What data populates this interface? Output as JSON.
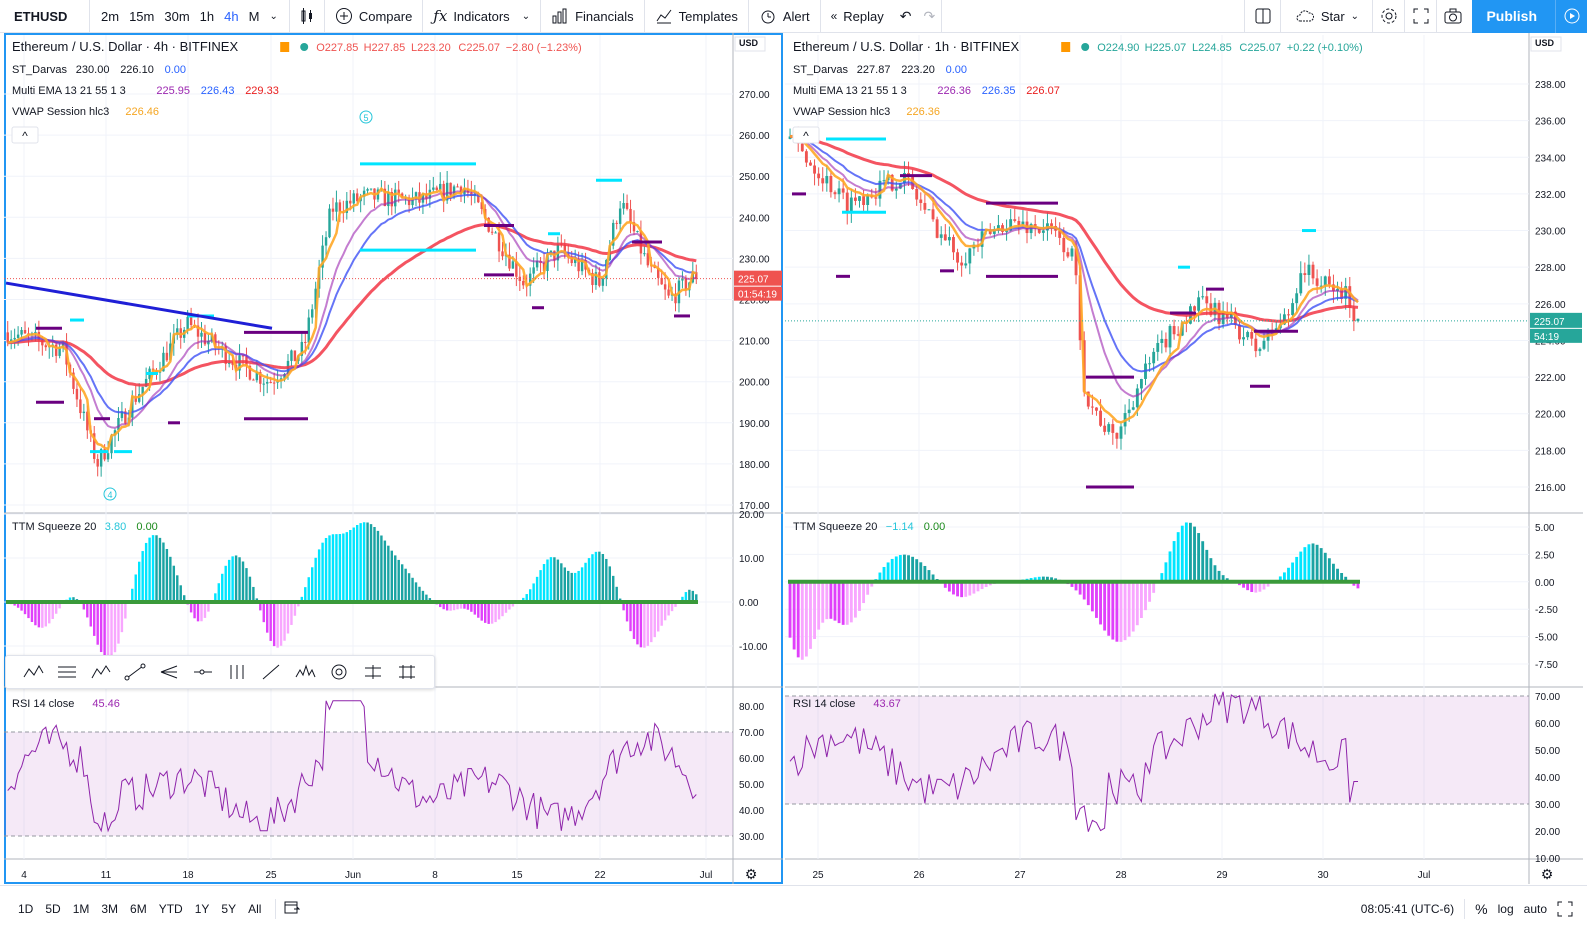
{
  "toolbar": {
    "symbol": "ETHUSD",
    "intervals": [
      {
        "label": "2m",
        "active": false
      },
      {
        "label": "15m",
        "active": false
      },
      {
        "label": "30m",
        "active": false
      },
      {
        "label": "1h",
        "active": false
      },
      {
        "label": "4h",
        "active": true
      },
      {
        "label": "M",
        "active": false
      }
    ],
    "compare": "Compare",
    "indicators": "Indicators",
    "financials": "Financials",
    "templates": "Templates",
    "alert": "Alert",
    "replay": "Replay",
    "layout_name": "Star",
    "publish": "Publish"
  },
  "left_chart": {
    "title": "Ethereum / U.S. Dollar · 4h · BITFINEX",
    "ohlc": {
      "o": "O227.85",
      "h": "H227.85",
      "l": "L223.20",
      "c": "C225.07",
      "chg": "−2.80 (−1.23%)"
    },
    "indicators": [
      {
        "name": "ST_Darvas",
        "values": [
          {
            "v": "230.00",
            "color": "#131722"
          },
          {
            "v": "226.10",
            "color": "#131722"
          },
          {
            "v": "0.00",
            "color": "#2962ff"
          }
        ]
      },
      {
        "name": "Multi EMA 13 21 55 1 3",
        "values": [
          {
            "v": "225.95",
            "color": "#9c27b0"
          },
          {
            "v": "226.43",
            "color": "#2962ff"
          },
          {
            "v": "229.33",
            "color": "#e91e1e"
          }
        ]
      },
      {
        "name": "VWAP Session hlc3",
        "values": [
          {
            "v": "226.46",
            "color": "#f5a623"
          }
        ]
      }
    ],
    "price_axis": {
      "currency": "USD",
      "ticks": [
        "270.00",
        "260.00",
        "250.00",
        "240.00",
        "230.00",
        "220.00",
        "210.00",
        "200.00",
        "190.00",
        "180.00",
        "170.00"
      ],
      "last": "225.07",
      "countdown": "01:54:19"
    },
    "time_axis": [
      "4",
      "11",
      "18",
      "25",
      "Jun",
      "8",
      "15",
      "22",
      "Jul"
    ],
    "marker_top": "5",
    "marker_bottom": "4",
    "ttm": {
      "label": "TTM Squeeze 20",
      "v1": "3.80",
      "v2": "0.00",
      "ticks": [
        "20.00",
        "10.00",
        "0.00",
        "-10.00"
      ]
    },
    "rsi": {
      "label": "RSI 14 close",
      "value": "45.46",
      "ticks": [
        "80.00",
        "70.00",
        "60.00",
        "50.00",
        "40.00",
        "30.00"
      ]
    }
  },
  "right_chart": {
    "title": "Ethereum / U.S. Dollar · 1h · BITFINEX",
    "ohlc": {
      "o": "O224.90",
      "h": "H225.07",
      "l": "L224.85",
      "c": "C225.07",
      "chg": "+0.22 (+0.10%)"
    },
    "indicators": [
      {
        "name": "ST_Darvas",
        "values": [
          {
            "v": "227.87",
            "color": "#131722"
          },
          {
            "v": "223.20",
            "color": "#131722"
          },
          {
            "v": "0.00",
            "color": "#2962ff"
          }
        ]
      },
      {
        "name": "Multi EMA 13 21 55 1 3",
        "values": [
          {
            "v": "226.36",
            "color": "#9c27b0"
          },
          {
            "v": "226.35",
            "color": "#2962ff"
          },
          {
            "v": "226.07",
            "color": "#e91e1e"
          }
        ]
      },
      {
        "name": "VWAP Session hlc3",
        "values": [
          {
            "v": "226.36",
            "color": "#f5a623"
          }
        ]
      }
    ],
    "price_axis": {
      "currency": "USD",
      "ticks": [
        "238.00",
        "236.00",
        "234.00",
        "232.00",
        "230.00",
        "228.00",
        "226.00",
        "224.00",
        "222.00",
        "220.00",
        "218.00",
        "216.00"
      ],
      "last": "225.07",
      "countdown": "54:19"
    },
    "time_axis": [
      "25",
      "26",
      "27",
      "28",
      "29",
      "30",
      "Jul"
    ],
    "ttm": {
      "label": "TTM Squeeze 20",
      "v1": "−1.14",
      "v2": "0.00",
      "ticks": [
        "5.00",
        "2.50",
        "0.00",
        "-2.50",
        "-5.00",
        "-7.50"
      ]
    },
    "rsi": {
      "label": "RSI 14 close",
      "value": "43.67",
      "ticks": [
        "70.00",
        "60.00",
        "50.00",
        "40.00",
        "30.00",
        "20.00",
        "10.00"
      ]
    }
  },
  "bottom": {
    "ranges": [
      "1D",
      "5D",
      "1M",
      "3M",
      "6M",
      "YTD",
      "1Y",
      "5Y",
      "All"
    ],
    "clock": "08:05:41 (UTC-6)",
    "percent": "%",
    "log": "log",
    "auto": "auto"
  },
  "colors": {
    "up": "#26a69a",
    "down": "#ef5350",
    "ema13": "#9c27b0",
    "ema21": "#3f51f5",
    "ema55": "#f23645",
    "vwap": "#ffa726",
    "darvas_hi": "#00e5ff",
    "darvas_lo": "#6a0080",
    "accent": "#2962ff"
  }
}
